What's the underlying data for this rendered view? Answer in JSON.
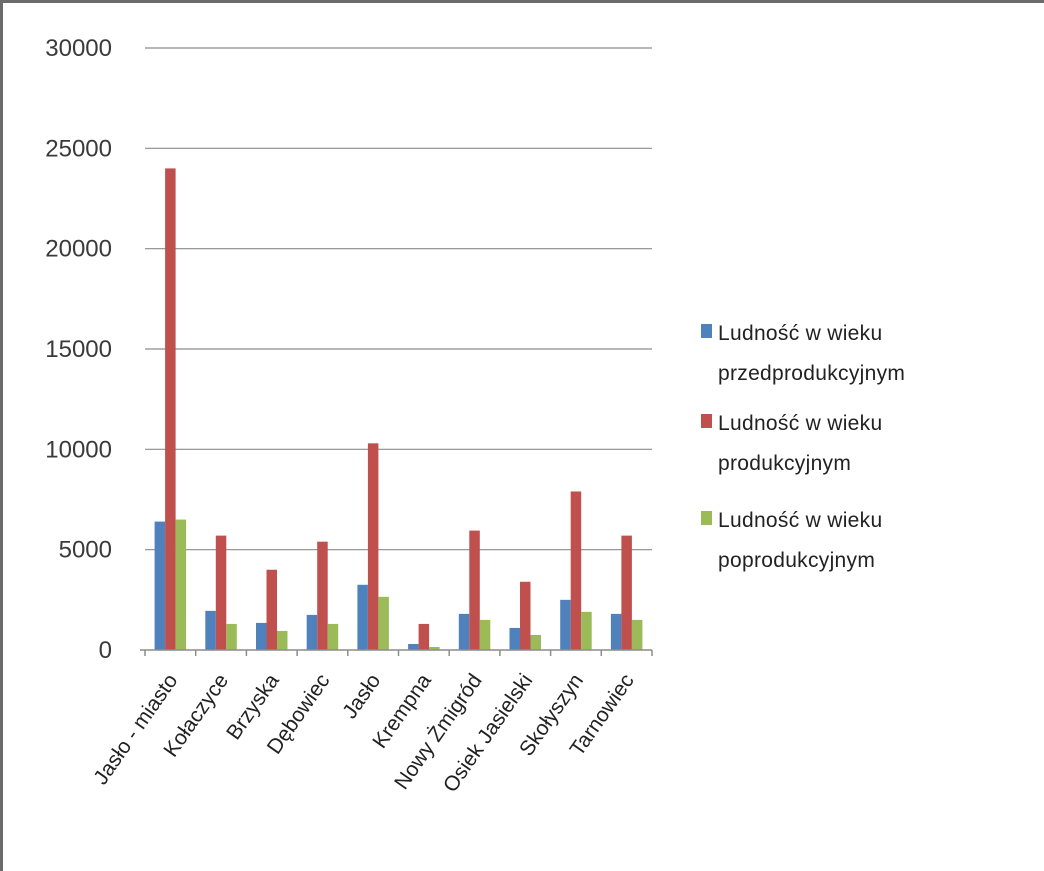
{
  "chart_data": {
    "type": "bar",
    "title": "",
    "xlabel": "",
    "ylabel": "",
    "ylim": [
      0,
      30000
    ],
    "yticks": [
      0,
      5000,
      10000,
      15000,
      20000,
      25000,
      30000
    ],
    "grid": true,
    "legend_position": "right",
    "categories": [
      "Jasło - miasto",
      "Kołaczyce",
      "Brzyska",
      "Dębowiec",
      "Jasło",
      "Krempna",
      "Nowy Żmigród",
      "Osiek Jasielski",
      "Skołyszyn",
      "Tarnowiec"
    ],
    "series": [
      {
        "name_lines": [
          "Ludność w  wieku",
          "przedprodukcyjnym"
        ],
        "color": "#4f81bd",
        "values": [
          6400,
          1950,
          1350,
          1750,
          3250,
          300,
          1800,
          1100,
          2500,
          1800
        ]
      },
      {
        "name_lines": [
          "Ludność w  wieku",
          "produkcyjnym"
        ],
        "color": "#c0504d",
        "values": [
          24000,
          5700,
          4000,
          5400,
          10300,
          1300,
          5950,
          3400,
          7900,
          5700
        ]
      },
      {
        "name_lines": [
          "Ludność w  wieku",
          "poprodukcyjnym"
        ],
        "color": "#9bbb59",
        "values": [
          6500,
          1300,
          950,
          1300,
          2650,
          150,
          1500,
          750,
          1900,
          1500
        ]
      }
    ]
  }
}
